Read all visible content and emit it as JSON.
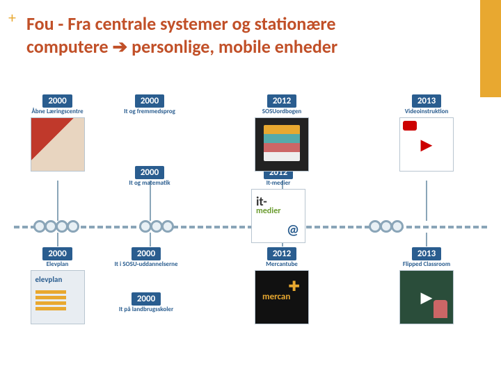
{
  "colors": {
    "accent": "#e8a830",
    "title": "#c15028",
    "node_bg": "#2a5d8f",
    "node_text": "#ffffff",
    "timeline": "#8aa5b8"
  },
  "plus_glyph": "+",
  "title_line1": "Fou - Fra centrale systemer og stationære",
  "title_line2_pre": "computere ",
  "title_arrow": "➔",
  "title_line2_post": " personlige, mobile enheder",
  "nodes": {
    "top1": {
      "year": "2000",
      "label": "Åbne Læringscentre"
    },
    "top2": {
      "year": "2000",
      "label": "It og fremmedsprog"
    },
    "top3": {
      "year": "2012",
      "label": "SOSUordbogen"
    },
    "top4": {
      "year": "2013",
      "label": "Videoinstruktion"
    },
    "sm1": {
      "year": "2000",
      "label": "It og matematik"
    },
    "sm2": {
      "year": "2012",
      "label": "It-medier"
    },
    "bot1": {
      "year": "2000",
      "label": "Elevplan"
    },
    "sm3": {
      "year": "2000",
      "label": "It i SOSU-uddannelserne"
    },
    "sm4": {
      "year": "2000",
      "label": "It på landbrugsskoler"
    },
    "bot2": {
      "year": "2012",
      "label": "Mercantube"
    },
    "bot3": {
      "year": "2013",
      "label": "Flipped Classroom"
    }
  }
}
